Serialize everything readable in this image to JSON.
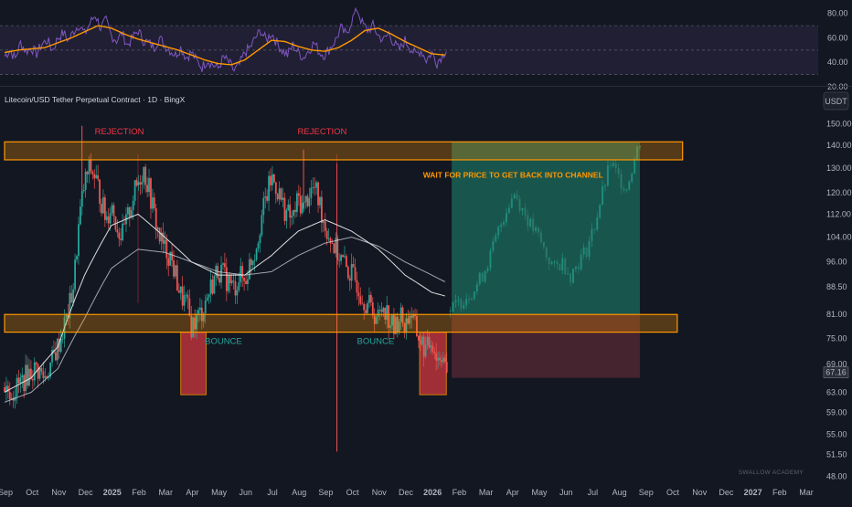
{
  "header": {
    "title": "Litecoin/USD Tether Perpetual Contract · 1D · BingX",
    "currency": "USDT",
    "watermark": "SWALLOW ACADEMY"
  },
  "chart_data": [
    {
      "type": "line",
      "panel": "oscillator",
      "ylim": [
        20,
        85
      ],
      "yticks": [
        "80.00",
        "60.00",
        "40.00",
        "20.00"
      ],
      "band": [
        30,
        70
      ],
      "reference_lines": [
        30,
        50,
        70
      ],
      "colors": {
        "fast": "#7e57c2",
        "slow": "#ff9800",
        "band": "#2b2540"
      },
      "series": [
        {
          "key": "fast",
          "x": [
            0,
            0.2,
            0.4,
            0.6,
            0.8,
            1,
            1.2,
            1.4,
            1.6,
            1.8,
            2,
            2.2,
            2.4,
            2.6,
            2.8,
            3,
            3.2,
            3.4,
            3.6,
            3.8,
            4,
            4.2,
            4.4,
            4.6,
            4.8,
            5,
            5.2,
            5.4,
            5.6,
            5.8,
            6,
            6.2,
            6.4,
            6.6,
            6.8,
            7,
            7.2,
            7.4,
            7.6,
            7.8,
            8,
            8.2,
            8.4,
            8.6,
            8.8,
            9,
            9.2,
            9.4,
            9.6,
            9.8,
            10,
            10.2,
            10.4,
            10.6,
            10.8,
            11,
            11.2,
            11.4,
            11.6,
            11.8,
            12,
            12.2,
            12.4,
            12.6,
            12.8,
            13,
            13.2,
            13.4,
            13.6,
            13.8,
            14,
            14.2,
            14.4,
            14.6,
            14.8,
            15,
            15.2,
            15.4,
            15.6,
            15.8,
            16,
            16.2,
            16.4,
            16.6
          ],
          "values": [
            45,
            50,
            43,
            56,
            49,
            52,
            47,
            55,
            58,
            50,
            60,
            64,
            58,
            66,
            71,
            63,
            72,
            79,
            68,
            74,
            62,
            58,
            64,
            54,
            60,
            66,
            58,
            56,
            52,
            60,
            54,
            50,
            46,
            52,
            44,
            48,
            41,
            36,
            42,
            38,
            35,
            44,
            40,
            33,
            38,
            48,
            52,
            60,
            66,
            58,
            64,
            56,
            50,
            46,
            54,
            48,
            44,
            50,
            56,
            48,
            46,
            52,
            58,
            68,
            62,
            74,
            84,
            72,
            66,
            70,
            62,
            58,
            64,
            55,
            50,
            58,
            52,
            46,
            50,
            42,
            48,
            40,
            46,
            52
          ]
        },
        {
          "key": "slow",
          "x": [
            0,
            0.5,
            1,
            1.5,
            2,
            2.5,
            3,
            3.5,
            4,
            4.5,
            5,
            5.5,
            6,
            6.5,
            7,
            7.5,
            8,
            8.5,
            9,
            9.5,
            10,
            10.5,
            11,
            11.5,
            12,
            12.5,
            13,
            13.5,
            14,
            14.5,
            15,
            15.5,
            16,
            16.5
          ],
          "values": [
            48,
            50,
            51,
            52,
            56,
            60,
            65,
            70,
            68,
            63,
            59,
            56,
            53,
            50,
            46,
            42,
            39,
            38,
            42,
            50,
            58,
            57,
            53,
            50,
            49,
            52,
            58,
            66,
            68,
            63,
            57,
            52,
            47,
            46
          ]
        }
      ]
    },
    {
      "type": "candlestick",
      "panel": "price",
      "x_unit": "months since Sep 2024",
      "scale": "log",
      "ylim": [
        46,
        153
      ],
      "yticks": [
        "150.00",
        "140.00",
        "130.00",
        "120.00",
        "112.00",
        "104.00",
        "96.00",
        "88.50",
        "81.00",
        "75.00",
        "69.00",
        "63.00",
        "59.00",
        "55.00",
        "51.50",
        "48.00"
      ],
      "xticks": [
        "Sep",
        "Oct",
        "Nov",
        "Dec",
        "2025",
        "Feb",
        "Mar",
        "Apr",
        "May",
        "Jun",
        "Jul",
        "Aug",
        "Sep",
        "Oct",
        "Nov",
        "Dec",
        "2026",
        "Feb",
        "Mar",
        "Apr",
        "May",
        "Jun",
        "Jul",
        "Aug",
        "Sep",
        "Oct",
        "Nov",
        "Dec",
        "2027",
        "Feb",
        "Mar"
      ],
      "bold_xticks": [
        "2025",
        "2026",
        "2027"
      ],
      "last_price": "67.16",
      "colors": {
        "up": "#26a69a",
        "down": "#ef5350",
        "ma_short": "#e8e8e8",
        "ma_long": "#d1d4dc",
        "last_price": "#b2b5be"
      },
      "price_path": {
        "x": [
          0,
          0.3,
          0.6,
          0.9,
          1.2,
          1.5,
          1.8,
          2.1,
          2.4,
          2.6,
          2.8,
          3.0,
          3.2,
          3.4,
          3.6,
          3.8,
          4.0,
          4.2,
          4.4,
          4.6,
          4.8,
          5.0,
          5.2,
          5.4,
          5.6,
          5.8,
          6.0,
          6.2,
          6.4,
          6.6,
          6.8,
          7.0,
          7.2,
          7.4,
          7.6,
          7.8,
          8.0,
          8.2,
          8.4,
          8.6,
          8.8,
          9.0,
          9.2,
          9.4,
          9.6,
          9.8,
          10.0,
          10.2,
          10.4,
          10.6,
          10.8,
          11.0,
          11.2,
          11.4,
          11.6,
          11.8,
          12.0,
          12.2,
          12.4,
          12.6,
          12.8,
          13.0,
          13.2,
          13.4,
          13.6,
          13.8,
          14.0,
          14.2,
          14.4,
          14.6,
          14.8,
          15.0,
          15.2,
          15.4,
          15.6,
          15.8,
          16.0,
          16.2,
          16.4,
          16.6
        ],
        "values": [
          64,
          63,
          65,
          67,
          68,
          66,
          70,
          75,
          82,
          90,
          110,
          124,
          130,
          126,
          118,
          110,
          116,
          108,
          104,
          110,
          118,
          124,
          130,
          122,
          112,
          104,
          100,
          98,
          92,
          86,
          84,
          78,
          80,
          82,
          86,
          90,
          94,
          92,
          90,
          88,
          92,
          90,
          96,
          100,
          110,
          118,
          126,
          122,
          116,
          112,
          110,
          118,
          114,
          120,
          122,
          116,
          108,
          104,
          100,
          97,
          94,
          92,
          90,
          86,
          84,
          82,
          80,
          84,
          80,
          77,
          81,
          78,
          82,
          77,
          74,
          72,
          75,
          70,
          72,
          67.16
        ]
      },
      "moving_averages": [
        {
          "key": "ma_short",
          "x": [
            0,
            1,
            2,
            3,
            4,
            5,
            6,
            7,
            8,
            9,
            10,
            11,
            12,
            13,
            14,
            15,
            16,
            16.5
          ],
          "values": [
            63,
            66,
            73,
            92,
            108,
            112,
            104,
            96,
            92,
            92,
            98,
            106,
            110,
            106,
            100,
            92,
            87,
            86
          ]
        },
        {
          "key": "ma_long",
          "x": [
            0,
            1,
            2,
            3,
            4,
            5,
            6,
            7,
            8,
            9,
            10,
            11,
            12,
            13,
            14,
            15,
            16,
            16.5
          ],
          "values": [
            61,
            63,
            68,
            80,
            94,
            100,
            99,
            96,
            93,
            92,
            93,
            98,
            102,
            104,
            101,
            96,
            92,
            90
          ]
        }
      ],
      "rejection_wicks": [
        {
          "x": 2.9,
          "value": 149
        },
        {
          "x": 11.2,
          "value": 138
        },
        {
          "x": 12.45,
          "value": 132
        },
        {
          "x": 12.45,
          "value": 52
        }
      ],
      "projection": {
        "x": [
          16.7,
          17,
          17.3,
          17.6,
          17.9,
          18.2,
          18.5,
          18.8,
          19.1,
          19.4,
          19.7,
          20,
          20.3,
          20.6,
          20.9,
          21.2,
          21.5,
          21.8,
          22.1,
          22.4,
          22.7,
          23,
          23.3,
          23.6,
          23.9
        ],
        "values": [
          82,
          84,
          86,
          88,
          92,
          98,
          106,
          114,
          120,
          114,
          108,
          104,
          98,
          94,
          96,
          92,
          96,
          100,
          108,
          120,
          132,
          126,
          122,
          134,
          146
        ]
      },
      "zones": [
        {
          "kind": "resistance",
          "from": 0,
          "to": 25.4,
          "low": 133.5,
          "high": 141.5,
          "color": "#ff9800"
        },
        {
          "kind": "support",
          "from": 0,
          "to": 25.2,
          "low": 76.5,
          "high": 81,
          "color": "#ff9800"
        },
        {
          "kind": "target",
          "from": 16.75,
          "to": 23.8,
          "low": 81,
          "high": 141.5,
          "color": "#1b6b5c"
        },
        {
          "kind": "stop",
          "from": 16.75,
          "to": 23.8,
          "low": 66,
          "high": 81,
          "color": "#5b2a35"
        },
        {
          "kind": "bounce",
          "from": 6.6,
          "to": 7.55,
          "low": 62.5,
          "high": 76.5,
          "color": "#c2343c"
        },
        {
          "kind": "bounce",
          "from": 15.55,
          "to": 16.55,
          "low": 62.5,
          "high": 76.5,
          "color": "#c2343c"
        }
      ],
      "annotations": [
        {
          "text": "REJECTION",
          "x": 4.3,
          "value": 145,
          "color": "red"
        },
        {
          "text": "REJECTION",
          "x": 11.9,
          "value": 145,
          "color": "red"
        },
        {
          "text": "BOUNCE",
          "x": 8.2,
          "value": 73.6,
          "color": "green"
        },
        {
          "text": "BOUNCE",
          "x": 13.9,
          "value": 73.6,
          "color": "green"
        },
        {
          "text": "WAIT FOR PRICE TO GET BACK INTO CHANNEL",
          "x": 19.05,
          "value": 126,
          "color": "orange"
        }
      ]
    }
  ]
}
